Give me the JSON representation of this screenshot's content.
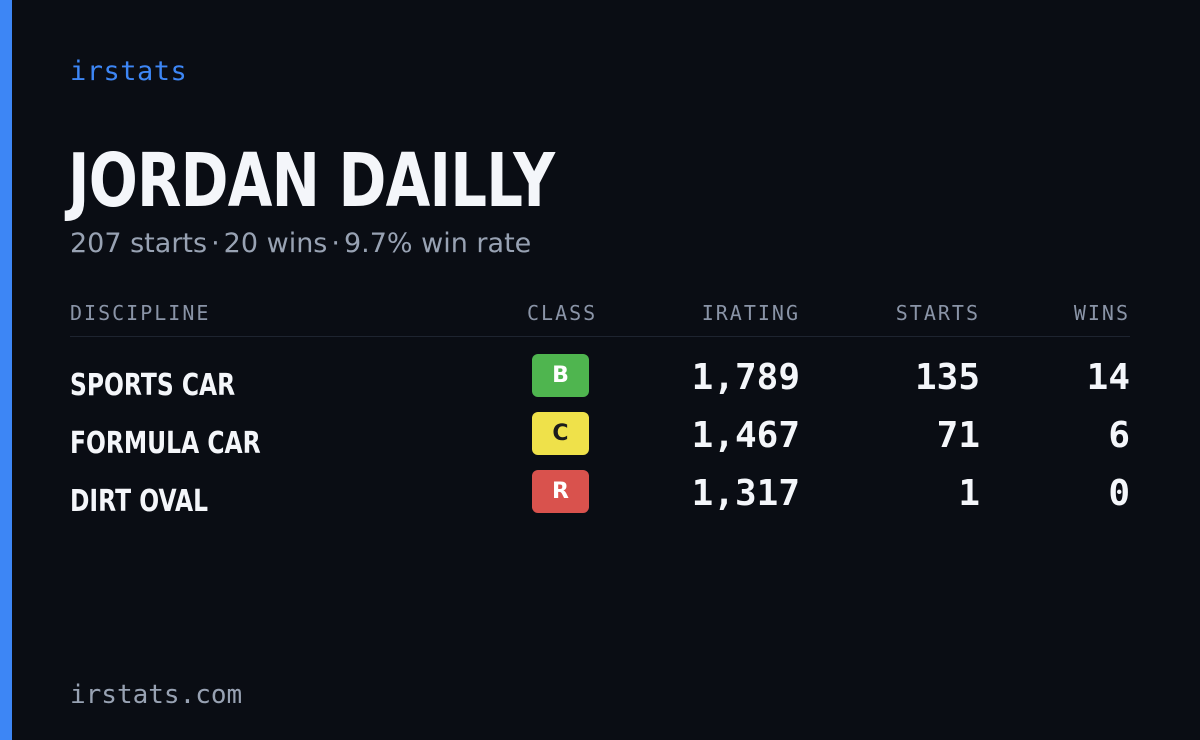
{
  "brand": "irstats",
  "player": {
    "name": "JORDAN DAILLY",
    "starts": "207 starts",
    "wins": "20 wins",
    "win_rate": "9.7% win rate",
    "separator": "·"
  },
  "table": {
    "headers": {
      "discipline": "DISCIPLINE",
      "class": "CLASS",
      "irating": "IRATING",
      "starts": "STARTS",
      "wins": "WINS"
    },
    "rows": [
      {
        "discipline": "SPORTS CAR",
        "class": "B",
        "class_color": "#4fb54f",
        "class_text_color": "#ffffff",
        "irating": "1,789",
        "starts": "135",
        "wins": "14"
      },
      {
        "discipline": "FORMULA CAR",
        "class": "C",
        "class_color": "#efe14a",
        "class_text_color": "#1c1c1c",
        "irating": "1,467",
        "starts": "71",
        "wins": "6"
      },
      {
        "discipline": "DIRT OVAL",
        "class": "R",
        "class_color": "#d9524d",
        "class_text_color": "#ffffff",
        "irating": "1,317",
        "starts": "1",
        "wins": "0"
      }
    ]
  },
  "footer": {
    "url": "irstats.com"
  },
  "colors": {
    "accent": "#3d86f5",
    "background": "#0a0d14"
  }
}
